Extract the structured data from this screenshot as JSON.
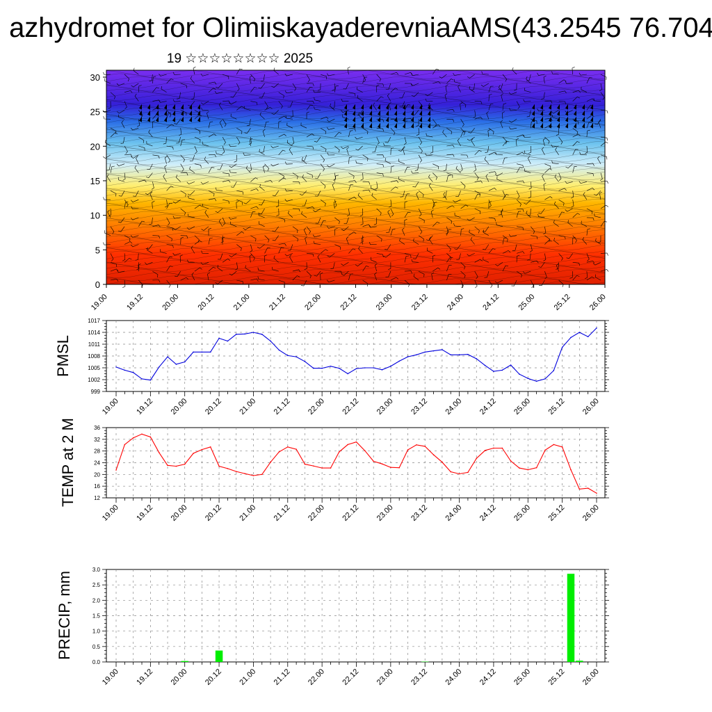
{
  "header": {
    "title": "azhydromet for OlimiiskayaderevniaAMS(43.2545 76.704",
    "subtitle": "19 ☆☆☆☆☆☆☆☆ 2025"
  },
  "colors": {
    "pressure_line": "#0000dd",
    "temperature_line": "#ff0000",
    "precip_bar": "#00ee00",
    "grid": "#888888",
    "wind_barb": "#000000"
  },
  "chart_data": [
    {
      "type": "heatmap",
      "title": "",
      "ylabel": "",
      "ylim": [
        0,
        31
      ],
      "yticks": [
        0,
        5,
        10,
        15,
        20,
        25,
        30
      ],
      "x_tick_labels": [
        "19.00",
        "19.12",
        "20.00",
        "20.12",
        "21.00",
        "21.12",
        "22.00",
        "22.12",
        "23.00",
        "23.12",
        "24.00",
        "24.12",
        "25.00",
        "25.12",
        "26.00"
      ],
      "colormap": [
        "#e02000",
        "#ff3000",
        "#ff7a00",
        "#ffb600",
        "#ffee70",
        "#d0eefa",
        "#6cc2ee",
        "#2a6ee6",
        "#3520d8",
        "#7a2ef0"
      ],
      "overlay": "wind barbs"
    },
    {
      "type": "line",
      "ylabel": "PMSL",
      "ylim": [
        999,
        1017
      ],
      "yticks": [
        999,
        1002,
        1005,
        1008,
        1011,
        1014,
        1017
      ],
      "x_tick_labels": [
        "19.00",
        "19.12",
        "20.00",
        "20.12",
        "21.00",
        "21.12",
        "22.00",
        "22.12",
        "23.00",
        "23.12",
        "24.00",
        "24.12",
        "25.00",
        "25.12",
        "26.00"
      ],
      "x": [
        0,
        3,
        6,
        9,
        12,
        15,
        18,
        21,
        24,
        27,
        30,
        33,
        36,
        39,
        42,
        45,
        48,
        51,
        54,
        57,
        60,
        63,
        66,
        69,
        72,
        75,
        78,
        81,
        84,
        87,
        90,
        93,
        96,
        99,
        102,
        105,
        108,
        111,
        114,
        117,
        120,
        123,
        126,
        129,
        132,
        135,
        138,
        141,
        144,
        147,
        150,
        153,
        156,
        159,
        162,
        165,
        168
      ],
      "series": [
        {
          "values": [
            1005.2,
            1004.4,
            1003.8,
            1002.2,
            1001.9,
            1005.2,
            1007.8,
            1005.9,
            1006.5,
            1009.0,
            1009.0,
            1009.0,
            1012.5,
            1011.8,
            1013.5,
            1013.6,
            1014.0,
            1013.5,
            1011.8,
            1009.5,
            1008.1,
            1007.8,
            1006.6,
            1004.9,
            1004.9,
            1005.4,
            1004.9,
            1003.5,
            1004.8,
            1005.0,
            1005.0,
            1004.5,
            1005.4,
            1006.7,
            1007.8,
            1008.3,
            1009.0,
            1009.3,
            1009.6,
            1008.3,
            1008.3,
            1008.4,
            1007.3,
            1005.6,
            1004.1,
            1004.4,
            1005.7,
            1003.4,
            1002.3,
            1001.6,
            1002.2,
            1004.3,
            1010.2,
            1012.7,
            1014.0,
            1012.9,
            1015.1
          ]
        }
      ]
    },
    {
      "type": "line",
      "ylabel": "TEMP at 2 M",
      "ylim": [
        12,
        36
      ],
      "yticks": [
        12,
        16,
        20,
        24,
        28,
        32,
        36
      ],
      "x_tick_labels": [
        "19.00",
        "19.12",
        "20.00",
        "20.12",
        "21.00",
        "21.12",
        "22.00",
        "22.12",
        "23.00",
        "23.12",
        "24.00",
        "24.12",
        "25.00",
        "25.12",
        "26.00"
      ],
      "x": [
        0,
        3,
        6,
        9,
        12,
        15,
        18,
        21,
        24,
        27,
        30,
        33,
        36,
        39,
        42,
        45,
        48,
        51,
        54,
        57,
        60,
        63,
        66,
        69,
        72,
        75,
        78,
        81,
        84,
        87,
        90,
        93,
        96,
        99,
        102,
        105,
        108,
        111,
        114,
        117,
        120,
        123,
        126,
        129,
        132,
        135,
        138,
        141,
        144,
        147,
        150,
        153,
        156,
        159,
        162,
        165,
        168
      ],
      "series": [
        {
          "values": [
            21.5,
            30.2,
            32.5,
            33.8,
            32.8,
            27.5,
            23.1,
            22.8,
            23.5,
            27.2,
            28.5,
            29.4,
            22.8,
            22.0,
            21.0,
            20.3,
            19.6,
            20.0,
            24.2,
            27.7,
            29.4,
            28.6,
            23.5,
            22.9,
            22.2,
            22.2,
            27.7,
            30.2,
            31.1,
            28.1,
            24.5,
            23.6,
            22.4,
            22.3,
            28.4,
            30.1,
            29.6,
            26.7,
            24.2,
            20.9,
            20.2,
            20.7,
            25.5,
            28.2,
            29.0,
            29.0,
            24.6,
            22.2,
            21.6,
            22.3,
            28.3,
            30.2,
            29.4,
            21.6,
            15.0,
            15.3,
            13.6
          ]
        }
      ]
    },
    {
      "type": "bar",
      "ylabel": "PRECIP, mm",
      "ylim": [
        0,
        3
      ],
      "yticks": [
        "0.0",
        "0.5",
        "1.0",
        "1.5",
        "2.0",
        "2.5",
        "3.0"
      ],
      "x_tick_labels": [
        "19.00",
        "19.12",
        "20.00",
        "20.12",
        "21.00",
        "21.12",
        "22.00",
        "22.12",
        "23.00",
        "23.12",
        "24.00",
        "24.12",
        "25.00",
        "25.12",
        "26.00"
      ],
      "bars": [
        {
          "x": 24,
          "value": 0.03
        },
        {
          "x": 36,
          "value": 0.37
        },
        {
          "x": 108,
          "value": 0.01
        },
        {
          "x": 159,
          "value": 2.86
        },
        {
          "x": 162,
          "value": 0.04
        }
      ]
    }
  ]
}
